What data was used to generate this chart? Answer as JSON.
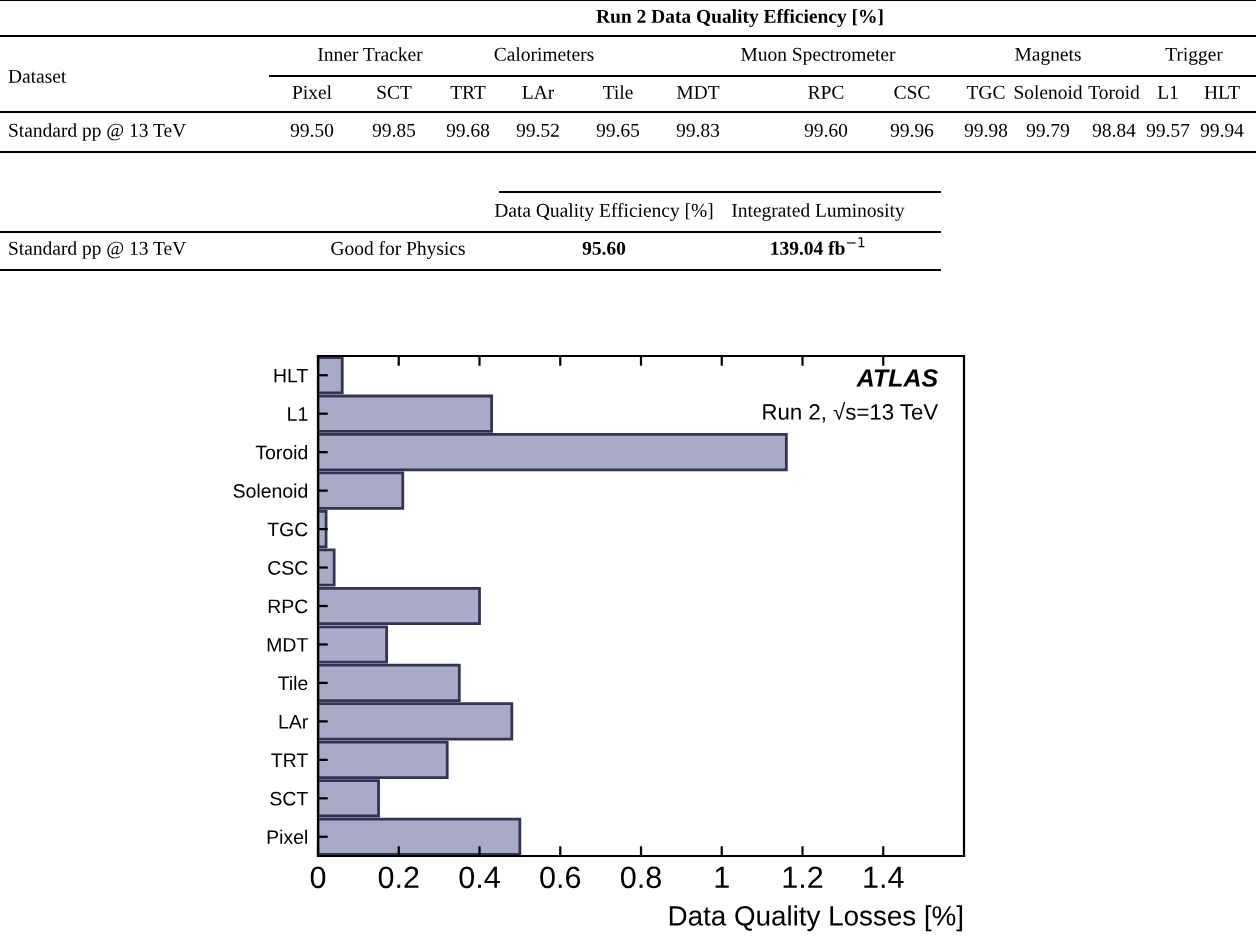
{
  "chart_data": {
    "type": "bar",
    "orientation": "horizontal",
    "categories": [
      "HLT",
      "L1",
      "Toroid",
      "Solenoid",
      "TGC",
      "CSC",
      "RPC",
      "MDT",
      "Tile",
      "LAr",
      "TRT",
      "SCT",
      "Pixel"
    ],
    "values": [
      0.06,
      0.43,
      1.16,
      0.21,
      0.02,
      0.04,
      0.4,
      0.17,
      0.35,
      0.48,
      0.32,
      0.15,
      0.5
    ],
    "color": "#a9a9c8",
    "xlim": [
      0,
      1.6
    ],
    "xticks": [
      0,
      0.2,
      0.4,
      0.6,
      0.8,
      1,
      1.2,
      1.4
    ],
    "xlabel": "Data Quality Losses [%]",
    "grid": false,
    "legend": false,
    "annotations": [
      "ATLAS",
      "Run 2, √s=13 TeV",
      "Run 2 Data Quality Efficiency [%]",
      "Dataset",
      "Inner Tracker",
      "Calorimeters",
      "Muon Spectrometer",
      "Magnets",
      "Trigger",
      "Pixel",
      "SCT",
      "TRT",
      "LAr",
      "Tile",
      "MDT",
      "RPC",
      "CSC",
      "TGC",
      "Solenoid",
      "Toroid",
      "L1",
      "HLT",
      "Standard pp @ 13 TeV",
      "99.50",
      "99.85",
      "99.68",
      "99.52",
      "99.65",
      "99.83",
      "99.60",
      "99.96",
      "99.98",
      "99.79",
      "98.84",
      "99.57",
      "99.94",
      "Data Quality Efficiency [%]",
      "Integrated Luminosity",
      "Standard pp @ 13 TeV",
      "Good for Physics",
      "95.60",
      "139.04 fb$^{−1}$"
    ]
  }
}
